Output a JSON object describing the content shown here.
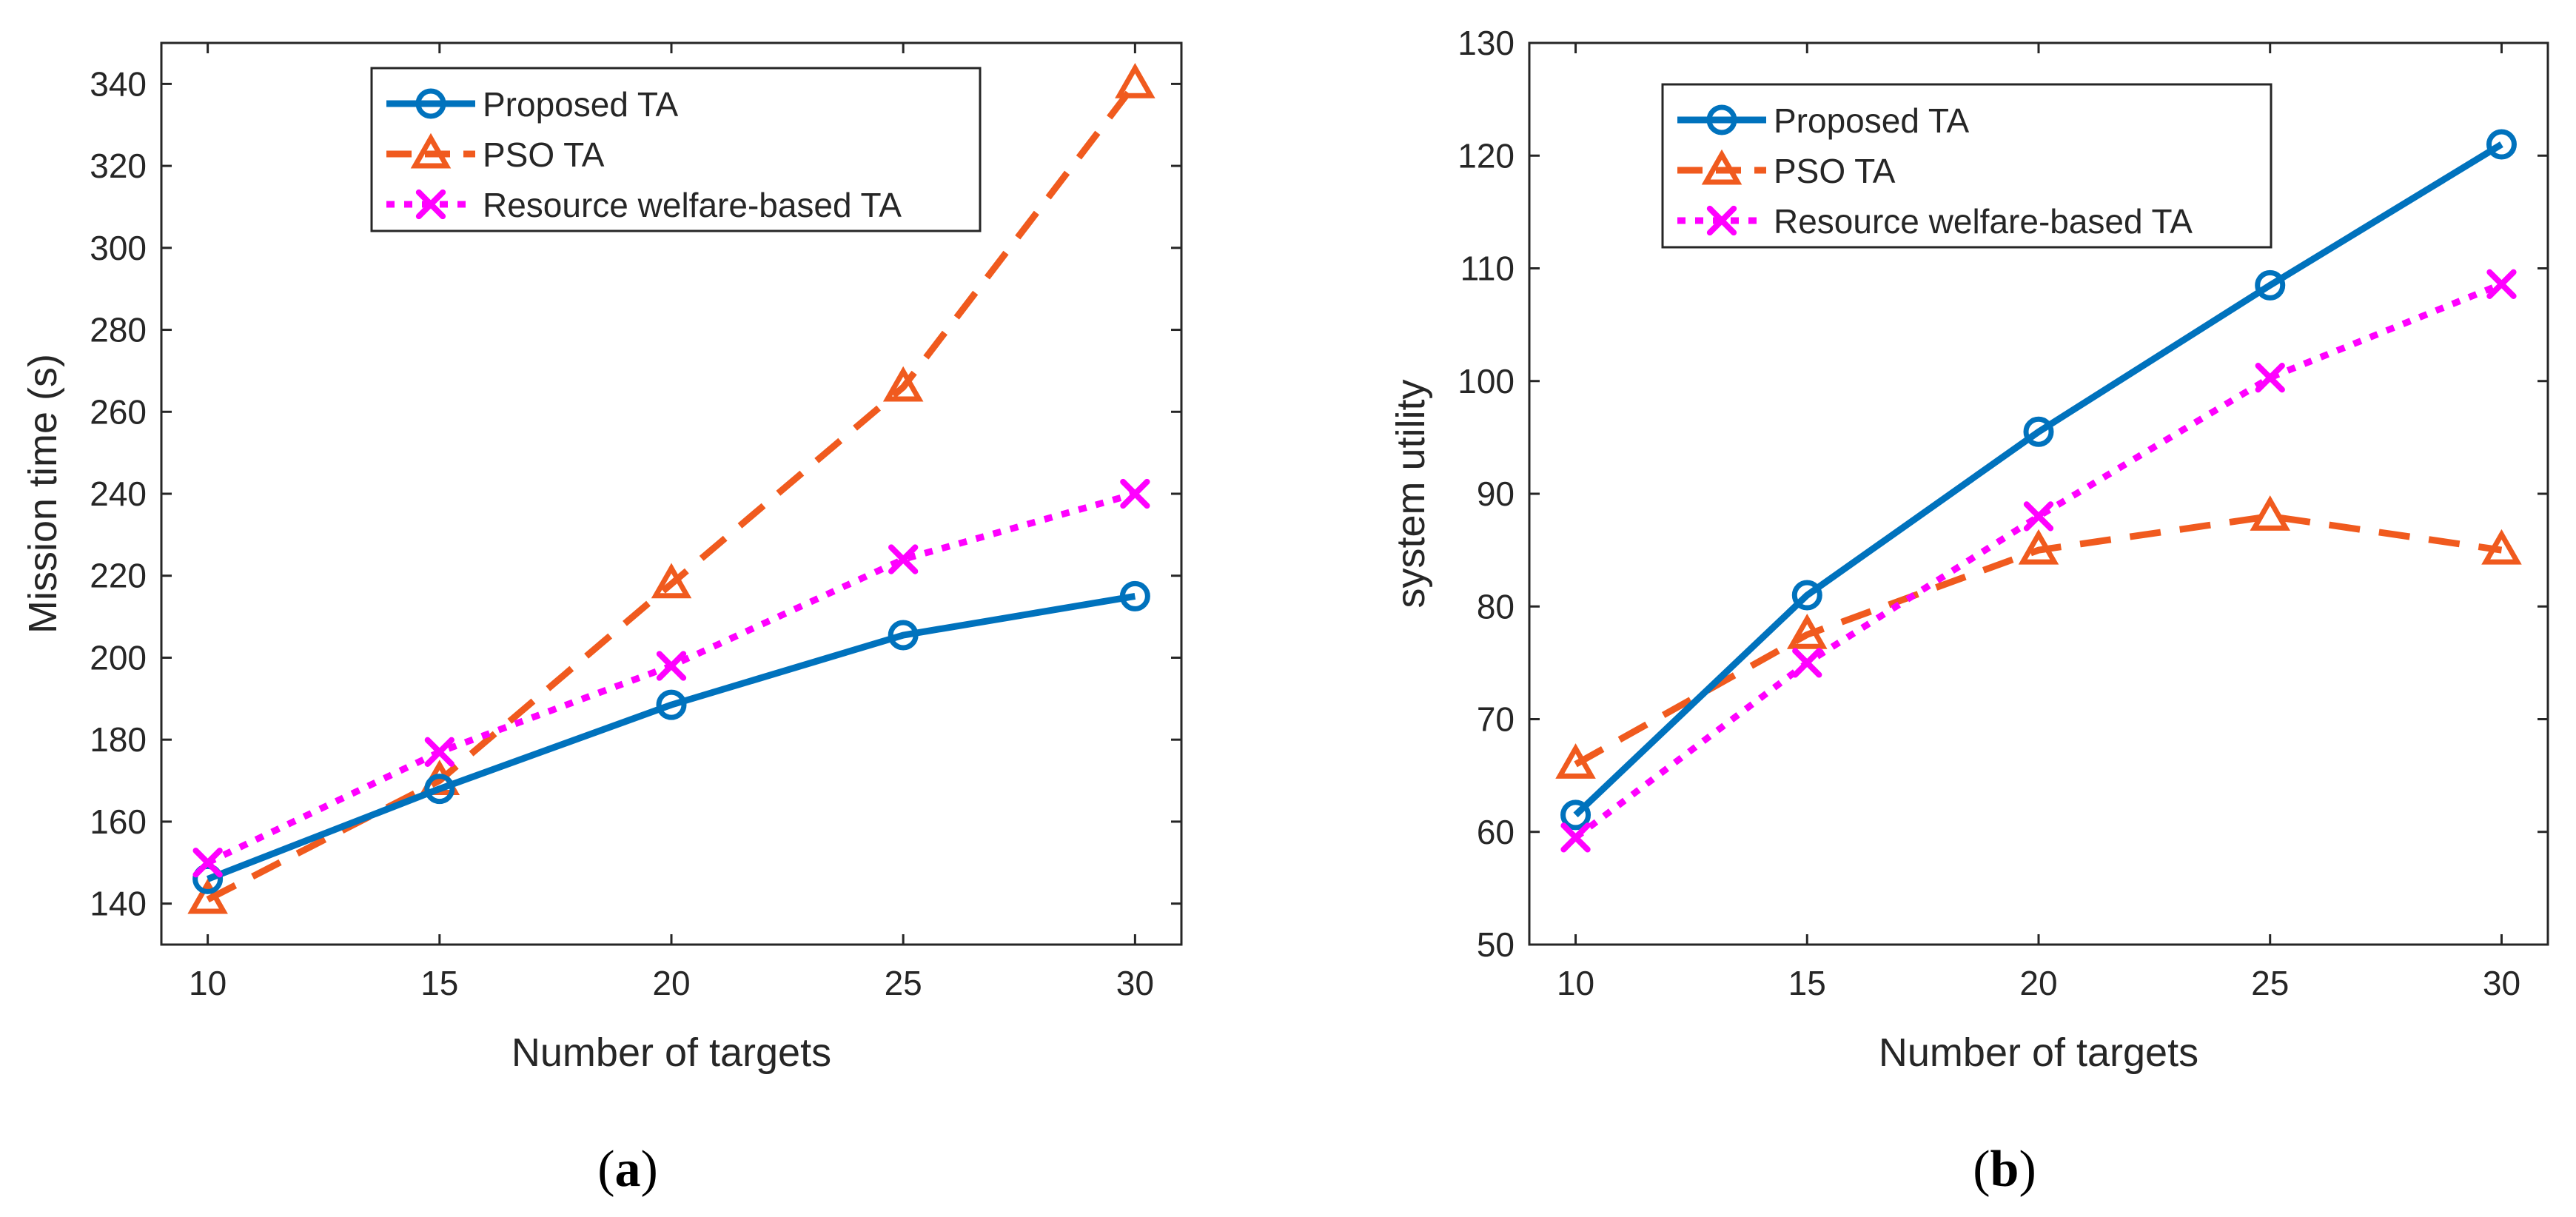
{
  "chart_data": [
    {
      "type": "line",
      "panel_label": "a",
      "title": "",
      "xlabel": "Number of targets",
      "ylabel": "Mission time (s)",
      "x": [
        10,
        15,
        20,
        25,
        30
      ],
      "xlim": [
        9,
        31
      ],
      "ylim": [
        130,
        350
      ],
      "xticks": [
        10,
        15,
        20,
        25,
        30
      ],
      "yticks": [
        140,
        160,
        180,
        200,
        220,
        240,
        260,
        280,
        300,
        320,
        340
      ],
      "legend_position": "top",
      "series": [
        {
          "name": "Proposed  TA",
          "values": [
            146,
            168,
            188.5,
            205.5,
            215
          ],
          "color": "#0072BD",
          "style": "solid",
          "marker": "circle"
        },
        {
          "name": "PSO  TA",
          "values": [
            141,
            170,
            218,
            266,
            340
          ],
          "color": "#F05A1E",
          "style": "dashed",
          "marker": "triangle"
        },
        {
          "name": "Resource welfare-based  TA",
          "values": [
            150,
            177,
            198,
            224,
            240
          ],
          "color": "#FF00FF",
          "style": "dotted",
          "marker": "x"
        }
      ]
    },
    {
      "type": "line",
      "panel_label": "b",
      "title": "",
      "xlabel": "Number of targets",
      "ylabel": "system utility",
      "x": [
        10,
        15,
        20,
        25,
        30
      ],
      "xlim": [
        9,
        31
      ],
      "ylim": [
        50,
        130
      ],
      "xticks": [
        10,
        15,
        20,
        25,
        30
      ],
      "yticks": [
        50,
        60,
        70,
        80,
        90,
        100,
        110,
        120,
        130
      ],
      "legend_position": "top-left",
      "series": [
        {
          "name": "Proposed  TA",
          "values": [
            61.5,
            81,
            95.5,
            108.5,
            121
          ],
          "color": "#0072BD",
          "style": "solid",
          "marker": "circle"
        },
        {
          "name": "PSO  TA",
          "values": [
            66,
            77.5,
            85,
            88,
            85
          ],
          "color": "#F05A1E",
          "style": "dashed",
          "marker": "triangle"
        },
        {
          "name": "Resource welfare-based  TA",
          "values": [
            59.5,
            75,
            88,
            100.3,
            108.6
          ],
          "color": "#FF00FF",
          "style": "dotted",
          "marker": "x"
        }
      ]
    }
  ],
  "captions": [
    {
      "open": "(",
      "letter": "a",
      "close": ")"
    },
    {
      "open": "(",
      "letter": "b",
      "close": ")"
    }
  ]
}
